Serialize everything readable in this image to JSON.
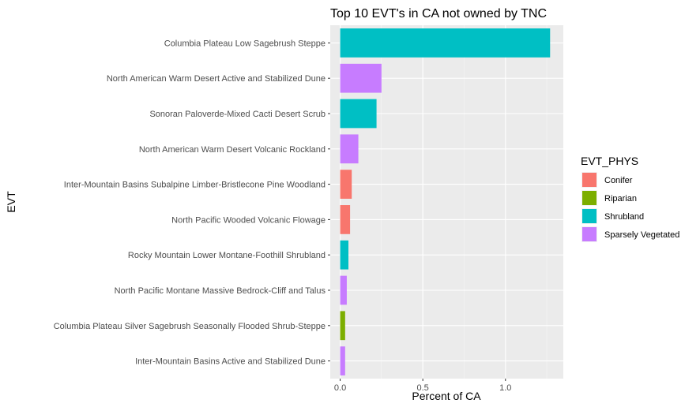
{
  "chart_data": {
    "type": "bar",
    "orientation": "horizontal",
    "title": "Top 10 EVT's in CA not owned by TNC",
    "xlabel": "Percent of CA",
    "ylabel": "EVT",
    "xlim": [
      -0.06,
      1.35
    ],
    "x_ticks": [
      "0.0",
      "0.5",
      "1.0"
    ],
    "x_tick_values": [
      0,
      0.5,
      1.0
    ],
    "grid": true,
    "legend_position": "right",
    "legend_title": "EVT_PHYS",
    "legend": [
      {
        "name": "Conifer",
        "color": "#F8766D"
      },
      {
        "name": "Riparian",
        "color": "#7CAE00"
      },
      {
        "name": "Shrubland",
        "color": "#00BFC4"
      },
      {
        "name": "Sparsely Vegetated",
        "color": "#C77CFF"
      }
    ],
    "categories": [
      "Inter-Mountain Basins Active and Stabilized Dune",
      "Columbia Plateau Silver Sagebrush Seasonally Flooded Shrub-Steppe",
      "North Pacific Montane Massive Bedrock-Cliff and Talus",
      "Rocky Mountain Lower Montane-Foothill Shrubland",
      "North Pacific Wooded Volcanic Flowage",
      "Inter-Mountain Basins Subalpine Limber-Bristlecone Pine Woodland",
      "North American Warm Desert Volcanic Rockland",
      "Sonoran Paloverde-Mixed Cacti Desert Scrub",
      "North American Warm Desert Active and Stabilized Dune",
      "Columbia Plateau Low Sagebrush Steppe"
    ],
    "values": [
      0.03,
      0.03,
      0.04,
      0.05,
      0.06,
      0.07,
      0.11,
      0.22,
      0.25,
      1.27
    ],
    "groups": [
      "Sparsely Vegetated",
      "Riparian",
      "Sparsely Vegetated",
      "Shrubland",
      "Conifer",
      "Conifer",
      "Sparsely Vegetated",
      "Shrubland",
      "Sparsely Vegetated",
      "Shrubland"
    ]
  }
}
